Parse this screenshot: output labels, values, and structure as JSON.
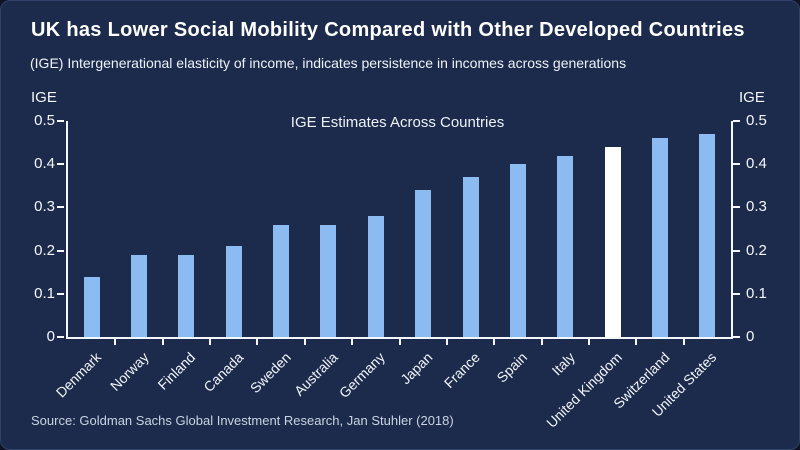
{
  "page": {
    "title": "UK has Lower Social Mobility Compared with Other Developed Countries",
    "subtitle": "(IGE) Intergenerational elasticity of income, indicates persistence in incomes across generations",
    "source": "Source: Goldman Sachs Global Investment Research, Jan Stuhler (2018)"
  },
  "colors": {
    "background": "#1C2B4B",
    "bar": "#8CBBF2",
    "highlight_bar": "#FFFFFF",
    "axis": "#F4F7FB",
    "text": "#FFFFFF"
  },
  "chart_data": {
    "type": "bar",
    "title": "IGE Estimates Across Countries",
    "ylabel_left": "IGE",
    "ylabel_right": "IGE",
    "categories": [
      "Denmark",
      "Norway",
      "Finland",
      "Canada",
      "Sweden",
      "Australia",
      "Germany",
      "Japan",
      "France",
      "Spain",
      "Italy",
      "United Kingdom",
      "Switzerland",
      "United States"
    ],
    "values": [
      0.14,
      0.19,
      0.19,
      0.21,
      0.26,
      0.26,
      0.28,
      0.34,
      0.37,
      0.4,
      0.42,
      0.44,
      0.46,
      0.47
    ],
    "highlight_category": "United Kingdom",
    "ylim": [
      0,
      0.5
    ],
    "yticks": [
      0,
      0.1,
      0.2,
      0.3,
      0.4,
      0.5
    ],
    "ytick_labels": [
      "0",
      "0.1",
      "0.2",
      "0.3",
      "0.4",
      "0.5"
    ],
    "grid": false,
    "legend": "none",
    "bar_color": "#8CBBF2",
    "highlight_color": "#FFFFFF"
  }
}
